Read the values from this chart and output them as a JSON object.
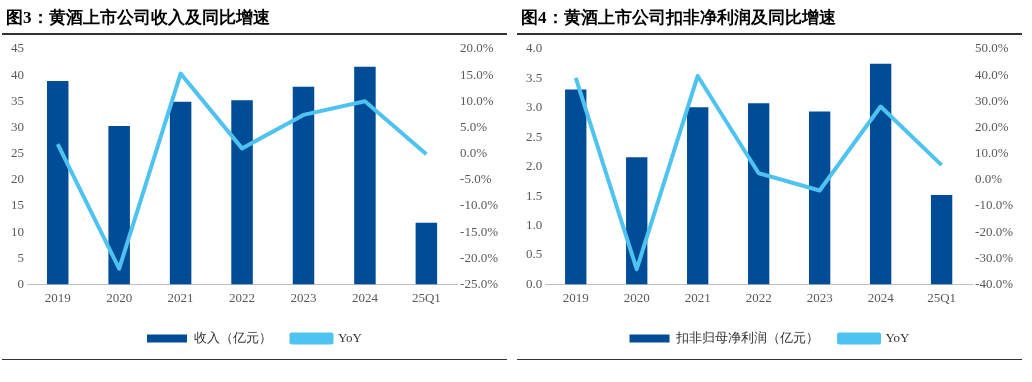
{
  "chart_data": [
    {
      "type": "bar",
      "title": "图3：黄酒上市公司收入及同比增速",
      "categories": [
        "2019",
        "2020",
        "2021",
        "2022",
        "2023",
        "2024",
        "25Q1"
      ],
      "series": [
        {
          "name": "收入（亿元）",
          "color": "#004c97",
          "values": [
            38.9,
            30.3,
            34.9,
            35.2,
            37.8,
            41.6,
            11.8
          ]
        },
        {
          "name": "YoY",
          "type": "line",
          "axis": "y2",
          "color": "#4fc3ef",
          "values": [
            1.8,
            -22.0,
            15.3,
            1.0,
            7.4,
            10.0,
            -0.1
          ]
        }
      ],
      "ylim": [
        0,
        45
      ],
      "yticks": [
        0,
        5,
        10,
        15,
        20,
        25,
        30,
        35,
        40,
        45
      ],
      "y2lim": [
        -25,
        20
      ],
      "y2ticks": [
        {
          "value": -25,
          "label": "-25.0%"
        },
        {
          "value": -20,
          "label": "-20.0%"
        },
        {
          "value": -15,
          "label": "-15.0%"
        },
        {
          "value": -10,
          "label": "-10.0%"
        },
        {
          "value": -5,
          "label": "-5.0%"
        },
        {
          "value": 0,
          "label": "0.0%"
        },
        {
          "value": 5,
          "label": "5.0%"
        },
        {
          "value": 10,
          "label": "10.0%"
        },
        {
          "value": 15,
          "label": "15.0%"
        },
        {
          "value": 20,
          "label": "20.0%"
        }
      ],
      "legend": "bottom",
      "marker": "none",
      "grid": false
    },
    {
      "type": "bar",
      "title": "图4：黄酒上市公司扣非净利润及同比增速",
      "categories": [
        "2019",
        "2020",
        "2021",
        "2022",
        "2023",
        "2024",
        "25Q1"
      ],
      "series": [
        {
          "name": "扣非归母净利润（亿元）",
          "color": "#004c97",
          "values": [
            3.31,
            2.16,
            3.01,
            3.08,
            2.94,
            3.75,
            1.52
          ]
        },
        {
          "name": "YoY",
          "type": "line",
          "axis": "y2",
          "color": "#4fc3ef",
          "values": [
            39.0,
            -34.2,
            39.7,
            2.5,
            -4.1,
            28.0,
            5.6
          ]
        }
      ],
      "ylim": [
        0,
        4
      ],
      "yticks": [
        {
          "value": 0,
          "label": "0.0"
        },
        {
          "value": 0.5,
          "label": "0.5"
        },
        {
          "value": 1,
          "label": "1.0"
        },
        {
          "value": 1.5,
          "label": "1.5"
        },
        {
          "value": 2,
          "label": "2.0"
        },
        {
          "value": 2.5,
          "label": "2.5"
        },
        {
          "value": 3,
          "label": "3.0"
        },
        {
          "value": 3.5,
          "label": "3.5"
        },
        {
          "value": 4,
          "label": "4.0"
        }
      ],
      "y2lim": [
        -40,
        50
      ],
      "y2ticks": [
        {
          "value": -40,
          "label": "-40.0%"
        },
        {
          "value": -30,
          "label": "-30.0%"
        },
        {
          "value": -20,
          "label": "-20.0%"
        },
        {
          "value": -10,
          "label": "-10.0%"
        },
        {
          "value": 0,
          "label": "0.0%"
        },
        {
          "value": 10,
          "label": "10.0%"
        },
        {
          "value": 20,
          "label": "20.0%"
        },
        {
          "value": 30,
          "label": "30.0%"
        },
        {
          "value": 40,
          "label": "40.0%"
        },
        {
          "value": 50,
          "label": "50.0%"
        }
      ],
      "legend": "bottom",
      "marker": "none",
      "grid": false
    }
  ]
}
